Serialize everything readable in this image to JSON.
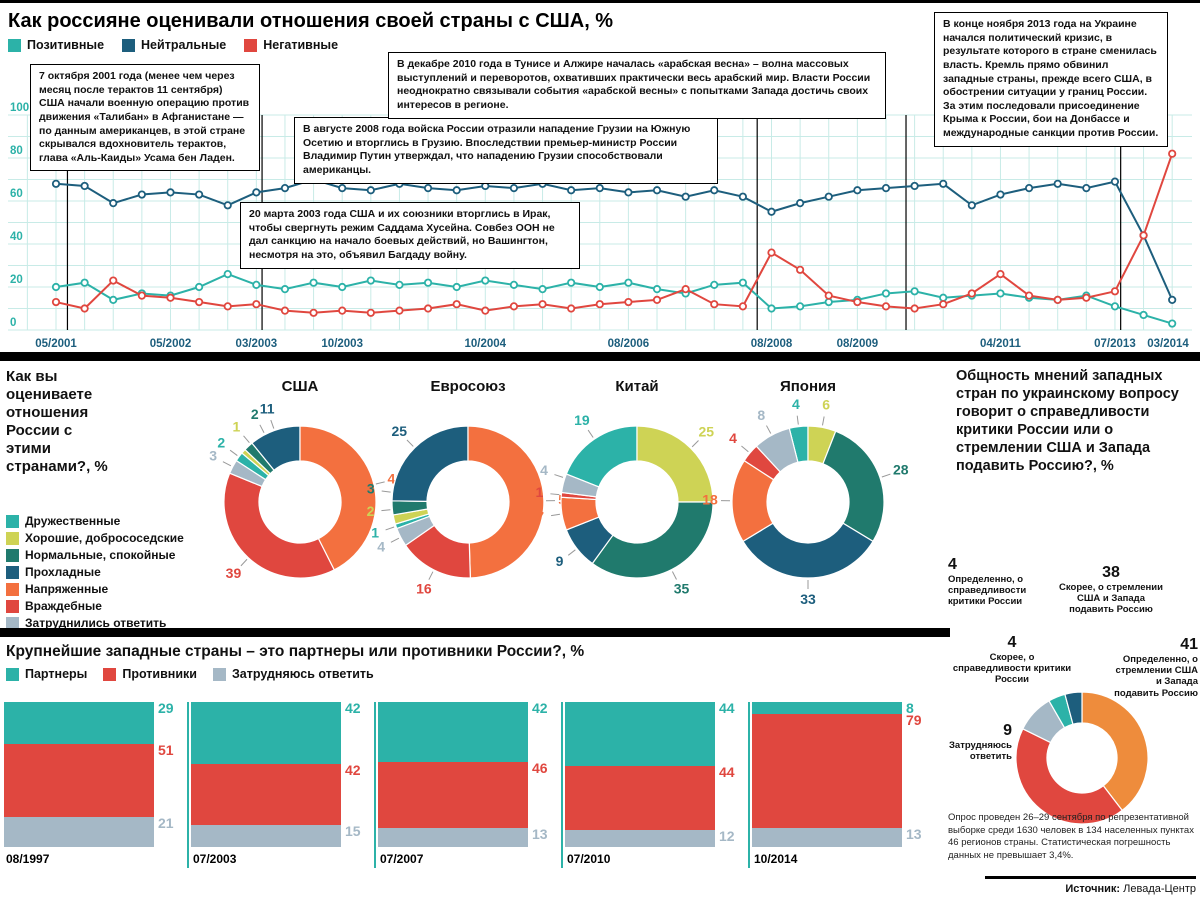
{
  "page": {
    "title": "Как россияне оценивали отношения своей страны с США, %",
    "source_label": "Источник:",
    "source_value": "Левада-Центр"
  },
  "colors": {
    "teal": "#2cb2a8",
    "navy": "#1d5e7d",
    "red": "#e0473f",
    "orange": "#f3703f",
    "amber": "#ee8c3c",
    "yellow_green": "#ced355",
    "dark_green": "#207a6d",
    "gray_blue": "#a5b8c6",
    "grid": "#c8ebe7"
  },
  "chart_data": {
    "timeline": {
      "type": "line",
      "title": "Как россияне оценивали отношения своей страны с США, %",
      "ylim": [
        0,
        100
      ],
      "yticks": [
        0,
        20,
        40,
        60,
        80,
        100
      ],
      "xticks": [
        {
          "index": 0,
          "label": "05/2001"
        },
        {
          "index": 4,
          "label": "05/2002"
        },
        {
          "index": 7,
          "label": "03/2003"
        },
        {
          "index": 10,
          "label": "10/2003"
        },
        {
          "index": 15,
          "label": "10/2004"
        },
        {
          "index": 20,
          "label": "08/2006"
        },
        {
          "index": 25,
          "label": "08/2008"
        },
        {
          "index": 28,
          "label": "08/2009"
        },
        {
          "index": 33,
          "label": "04/2011"
        },
        {
          "index": 37,
          "label": "07/2013"
        },
        {
          "index": 39,
          "label": "03/2014"
        }
      ],
      "event_line_indices": [
        0.4,
        7.2,
        24.5,
        29.7,
        37.2
      ],
      "series": [
        {
          "name": "Позитивные",
          "color": "#2cb2a8",
          "values": [
            20,
            22,
            14,
            17,
            16,
            20,
            26,
            21,
            19,
            22,
            20,
            23,
            21,
            22,
            20,
            23,
            21,
            19,
            22,
            20,
            22,
            19,
            17,
            21,
            22,
            10,
            11,
            13,
            14,
            17,
            18,
            15,
            16,
            17,
            15,
            14,
            16,
            11,
            7,
            3
          ]
        },
        {
          "name": "Нейтральные",
          "color": "#1d5e7d",
          "values": [
            68,
            67,
            59,
            63,
            64,
            63,
            58,
            64,
            66,
            70,
            66,
            65,
            68,
            66,
            65,
            67,
            66,
            68,
            65,
            66,
            64,
            65,
            62,
            65,
            62,
            55,
            59,
            62,
            65,
            66,
            67,
            68,
            58,
            63,
            66,
            68,
            66,
            69,
            44,
            14
          ]
        },
        {
          "name": "Негативные",
          "color": "#e0473f",
          "values": [
            13,
            10,
            23,
            16,
            15,
            13,
            11,
            12,
            9,
            8,
            9,
            8,
            9,
            10,
            12,
            9,
            11,
            12,
            10,
            12,
            13,
            14,
            19,
            12,
            11,
            36,
            28,
            16,
            13,
            11,
            10,
            12,
            17,
            26,
            16,
            14,
            15,
            18,
            44,
            82
          ]
        }
      ],
      "annotations": [
        {
          "id": "afghanistan-2001",
          "text": "7 октября 2001 года (менее чем через месяц после терактов 11 сентября) США начали военную операцию против движения «Талибан» в Афганистане — по данным американцев, в этой стране скрывался вдохновитель терактов, глава «Аль-Каиды» Усама бен Ладен."
        },
        {
          "id": "iraq-2003",
          "text": "20 марта 2003 года США и их союзники вторглись в Ирак, чтобы свергнуть режим Саддама Хусейна. Совбез ООН не дал санкцию на начало боевых действий, но Вашингтон, несмотря на это, объявил Багдаду войну."
        },
        {
          "id": "georgia-2008",
          "text": "В августе 2008 года войска России отразили нападение Грузии на Южную Осетию и вторглись в Грузию. Впоследствии премьер-министр России Владимир Путин утверждал, что нападению Грузии способствовали американцы."
        },
        {
          "id": "arab-spring-2010",
          "text": "В декабре 2010 года в Тунисе и Алжире началась «арабская весна» – волна массовых выступлений и переворотов, охвативших практически весь арабский мир. Власти России неоднократно связывали события «арабской весны» с попытками Запада достичь своих интересов в регионе."
        },
        {
          "id": "ukraine-2013",
          "text": "В конце ноября 2013 года на Украине начался политический кризис, в результате которого в стране сменилась власть. Кремль прямо обвинил западные страны, прежде всего США, в обострении ситуации у границ России. За этим последовали присоединение Крыма к России, бои на Донбассе и международные санкции против России."
        }
      ]
    },
    "relations": {
      "type": "pie",
      "question": "Как вы оцениваете отношения России с этими странами?, %",
      "categories": [
        {
          "label": "Дружественные",
          "color": "#2cb2a8"
        },
        {
          "label": "Хорошие, добрососедские",
          "color": "#ced355"
        },
        {
          "label": "Нормальные, спокойные",
          "color": "#207a6d"
        },
        {
          "label": "Прохладные",
          "color": "#1d5e7d"
        },
        {
          "label": "Напряженные",
          "color": "#f3703f"
        },
        {
          "label": "Враждебные",
          "color": "#e0473f"
        },
        {
          "label": "Затруднились ответить",
          "color": "#a5b8c6"
        }
      ],
      "charts": [
        {
          "name": "США",
          "values": [
            2,
            1,
            2,
            11,
            43,
            39,
            3
          ]
        },
        {
          "name": "Евросоюз",
          "values": [
            1,
            2,
            3,
            25,
            50,
            16,
            4
          ]
        },
        {
          "name": "Китай",
          "values": [
            19,
            25,
            35,
            9,
            7,
            1,
            4
          ]
        },
        {
          "name": "Япония",
          "values": [
            4,
            6,
            28,
            33,
            18,
            4,
            8
          ]
        }
      ]
    },
    "opinion": {
      "type": "pie",
      "question": "Общность мнений западных стран по украинскому вопросу говорит о справедливости критики России или о стремлении США и Запада подавить Россию?, %",
      "segments": [
        {
          "label": "Скорее, о стремлении США и Запада подавить Россию",
          "value": 38,
          "color": "#ee8c3c"
        },
        {
          "label": "Определенно, о стремлении США и Запада подавить Россию",
          "value": 41,
          "color": "#e0473f"
        },
        {
          "label": "Затрудняюсь ответить",
          "value": 9,
          "color": "#a5b8c6"
        },
        {
          "label": "Скорее, о справедливости критики России",
          "value": 4,
          "color": "#2cb2a8"
        },
        {
          "label": "Определенно, о справедливости критики России",
          "value": 4,
          "color": "#1d5e7d"
        }
      ]
    },
    "partners": {
      "type": "bar",
      "stacked": true,
      "title": "Крупнейшие западные страны – это партнеры или противники России?, %",
      "categories": [
        "08/1997",
        "07/2003",
        "07/2007",
        "07/2010",
        "10/2014"
      ],
      "series": [
        {
          "name": "Партнеры",
          "color": "#2cb2a8",
          "values": [
            29,
            42,
            42,
            44,
            8
          ]
        },
        {
          "name": "Противники",
          "color": "#e0473f",
          "values": [
            51,
            42,
            46,
            44,
            79
          ]
        },
        {
          "name": "Затрудняюсь ответить",
          "color": "#a5b8c6",
          "values": [
            21,
            15,
            13,
            12,
            13
          ]
        }
      ]
    },
    "note": "Опрос проведен 26–29  сентября  по репрезентативной  выборке среди 1630 человек  в 134 населенных пунктах 46 регионов страны. Статистическая погрешность данных не превышает 3,4%."
  }
}
